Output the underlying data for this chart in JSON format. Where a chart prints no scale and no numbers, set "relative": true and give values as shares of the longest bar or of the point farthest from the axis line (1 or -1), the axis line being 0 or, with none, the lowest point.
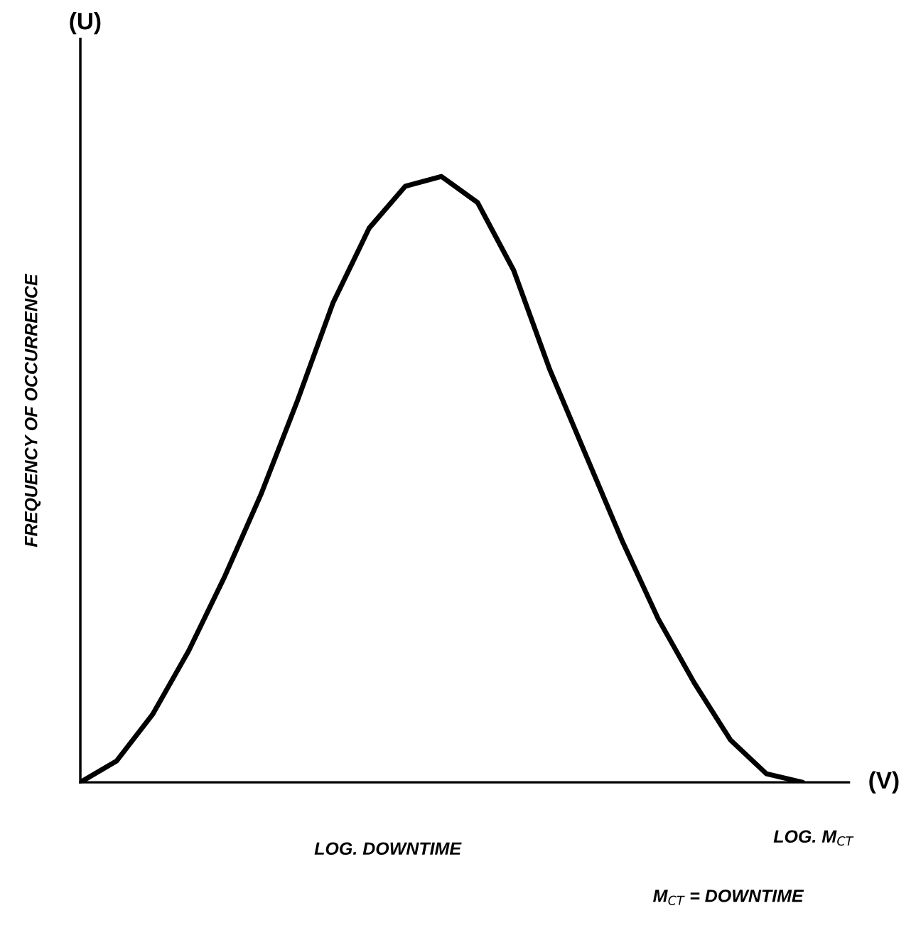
{
  "chart_data": {
    "type": "line",
    "relative": true,
    "xlabel": "LOG. DOWNTIME",
    "ylabel": "FREQUENCY OF OCCURRENCE",
    "categories": [
      null,
      null,
      null,
      null,
      null,
      null,
      null,
      null,
      null,
      null,
      null,
      null,
      null,
      null,
      null,
      null,
      null,
      null,
      null,
      null,
      null
    ],
    "series": [
      {
        "color": "#000000",
        "values": [
          0,
          0.035,
          0.112,
          0.217,
          0.34,
          0.475,
          0.628,
          0.792,
          0.915,
          0.984,
          1.0,
          0.957,
          0.845,
          0.681,
          0.54,
          0.399,
          0.27,
          0.164,
          0.07,
          0.014,
          0
        ]
      }
    ],
    "annotations": [
      "(U)",
      "(V)",
      "LOG. M$_{CT}$",
      "M$_{CT}$ = DOWNTIME"
    ],
    "grid": false,
    "legend": false,
    "marker": "none",
    "line_style": "solid"
  }
}
